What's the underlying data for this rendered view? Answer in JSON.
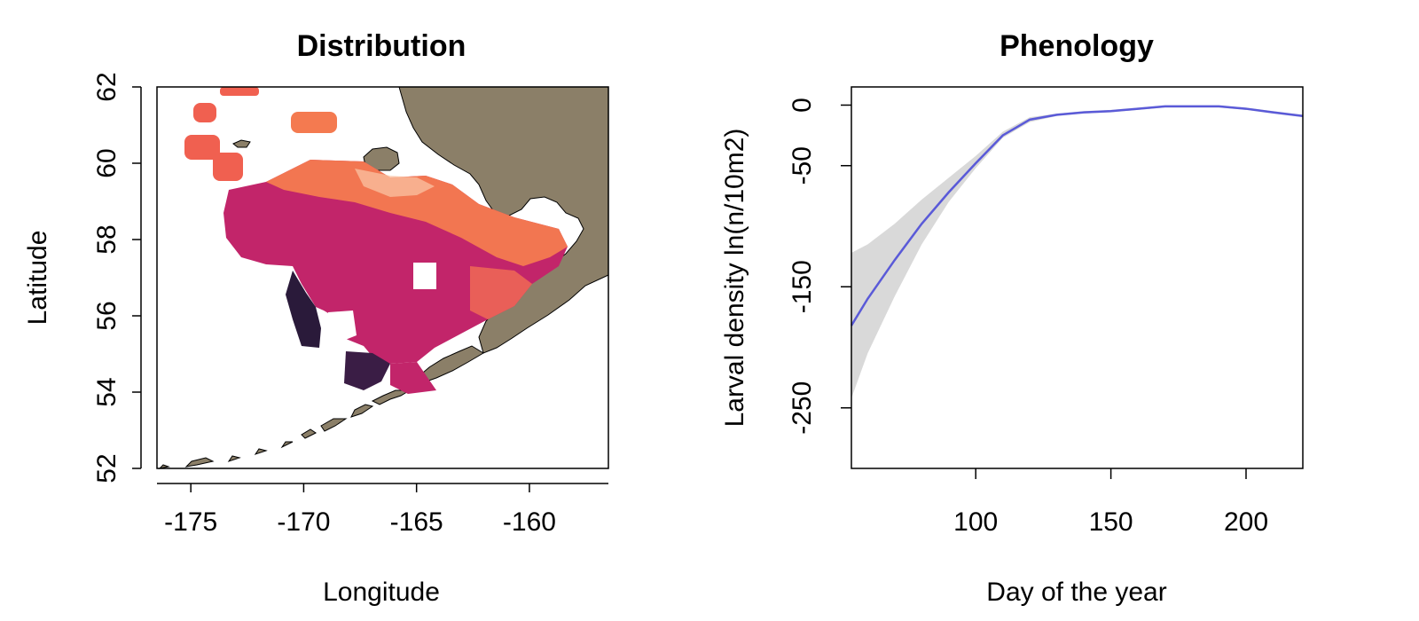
{
  "chart_data": [
    {
      "type": "heatmap",
      "title": "Distribution",
      "xlabel": "Longitude",
      "ylabel": "Latitude",
      "xlim": [
        -176.5,
        -156.5
      ],
      "ylim": [
        52,
        62
      ],
      "xticks": [
        "-175",
        "-170",
        "-165",
        "-160"
      ],
      "xtick_values": [
        -175,
        -170,
        -165,
        -160
      ],
      "yticks": [
        "52",
        "54",
        "56",
        "58",
        "60",
        "62"
      ],
      "ytick_values": [
        52,
        54,
        56,
        58,
        60,
        62
      ],
      "grid": false,
      "colors": {
        "land": "#8b7f68",
        "low": "#1e1530",
        "mid": "#c2256a",
        "high": "#f47a50",
        "highest": "#fbc8a8"
      }
    },
    {
      "type": "line",
      "title": "Phenology",
      "xlabel": "Day of the year",
      "ylabel": "Larval density ln(n/10m2)",
      "xlim": [
        54,
        221
      ],
      "ylim": [
        -300,
        15
      ],
      "xticks": [
        "100",
        "150",
        "200"
      ],
      "xtick_values": [
        100,
        150,
        200
      ],
      "yticks": [
        "0",
        "-50",
        "-150",
        "-250"
      ],
      "ytick_values": [
        0,
        -50,
        -150,
        -250
      ],
      "grid": false,
      "series": [
        {
          "x": [
            54,
            60,
            70,
            80,
            90,
            100,
            110,
            120,
            130,
            140,
            150,
            160,
            170,
            180,
            190,
            200,
            210,
            221
          ],
          "values": [
            -182,
            -160,
            -128,
            -98,
            -72,
            -48,
            -25,
            -12,
            -8,
            -6,
            -5,
            -3,
            -1,
            -1,
            -1,
            -3,
            -6,
            -9
          ],
          "lower": [
            -242,
            -205,
            -158,
            -115,
            -80,
            -52,
            -27,
            -14,
            -9,
            -7,
            -6,
            -4,
            -2,
            -2,
            -2,
            -4,
            -7,
            -10
          ],
          "upper": [
            -122,
            -115,
            -98,
            -78,
            -60,
            -42,
            -22,
            -10,
            -7,
            -5,
            -4,
            -2,
            -0.5,
            -0.5,
            -0.5,
            -2,
            -5,
            -8
          ],
          "color": "#5a5ad8",
          "band_color": "#d9d9d9"
        }
      ]
    }
  ]
}
